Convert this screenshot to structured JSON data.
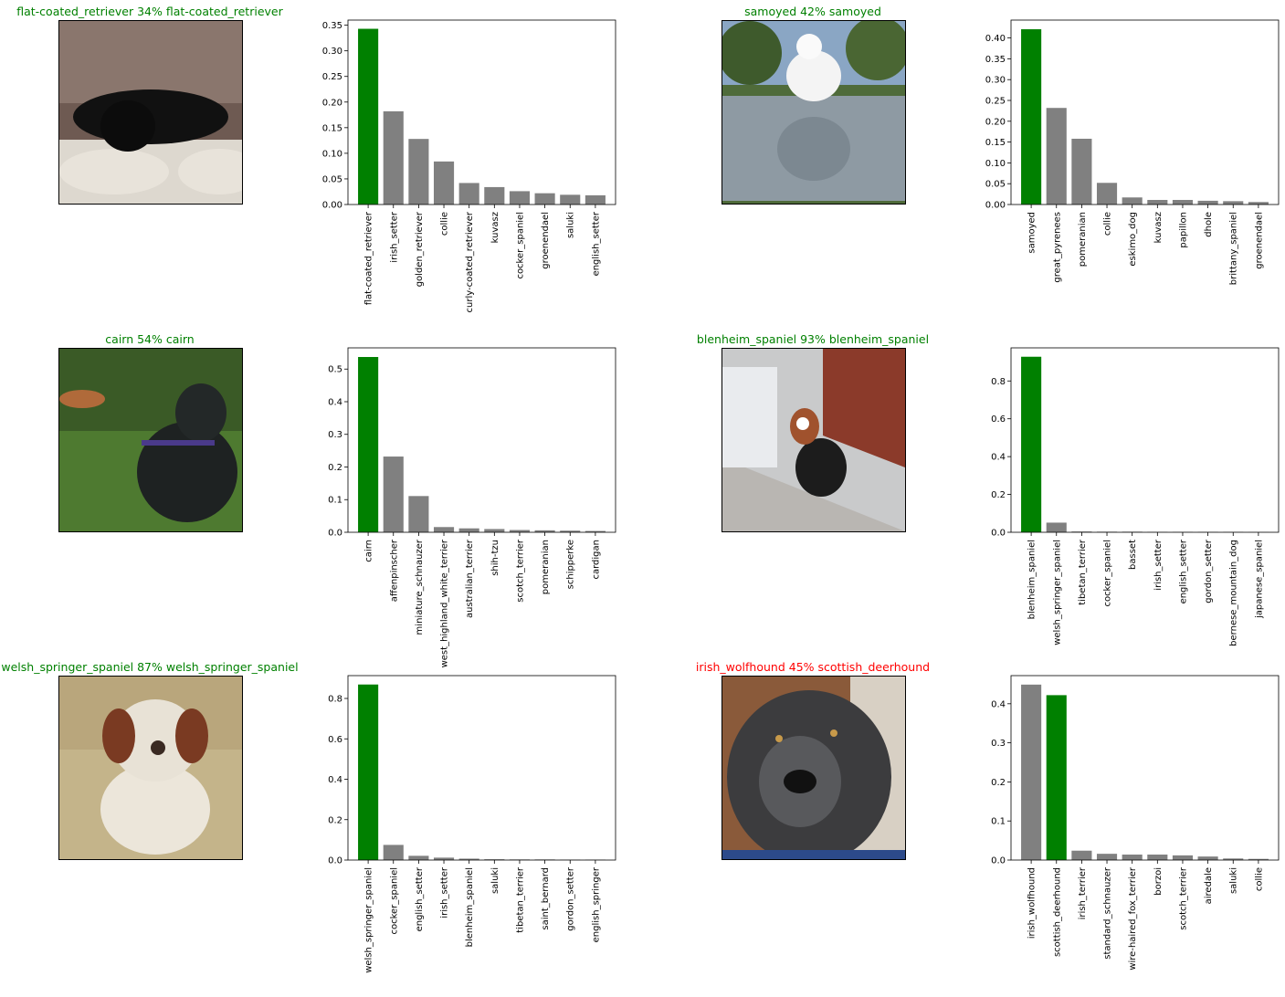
{
  "colors": {
    "correct": "#008000",
    "wrong": "#ff0000",
    "other_bar": "#808080"
  },
  "panels": [
    {
      "title": "flat-coated_retriever 34% flat-coated_retriever",
      "title_color": "#008000",
      "photo_icon": "black-dog-on-couch",
      "chart_data": {
        "type": "bar",
        "categories": [
          "flat-coated_retriever",
          "irish_setter",
          "golden_retriever",
          "collie",
          "curly-coated_retriever",
          "kuvasz",
          "cocker_spaniel",
          "groenendael",
          "saluki",
          "english_setter"
        ],
        "values": [
          0.343,
          0.182,
          0.128,
          0.084,
          0.042,
          0.034,
          0.026,
          0.022,
          0.019,
          0.018
        ],
        "highlight_index": 0,
        "yticks": [
          "0.00",
          "0.05",
          "0.10",
          "0.15",
          "0.20",
          "0.25",
          "0.30",
          "0.35"
        ],
        "ylim": [
          0,
          0.36
        ]
      }
    },
    {
      "title": "samoyed 42% samoyed",
      "title_color": "#008000",
      "photo_icon": "white-dog-on-stone-wall",
      "chart_data": {
        "type": "bar",
        "categories": [
          "samoyed",
          "great_pyrenees",
          "pomeranian",
          "collie",
          "eskimo_dog",
          "kuvasz",
          "papillon",
          "dhole",
          "brittany_spaniel",
          "groenendael"
        ],
        "values": [
          0.421,
          0.232,
          0.158,
          0.052,
          0.017,
          0.011,
          0.011,
          0.009,
          0.008,
          0.006
        ],
        "highlight_index": 0,
        "yticks": [
          "0.00",
          "0.05",
          "0.10",
          "0.15",
          "0.20",
          "0.25",
          "0.30",
          "0.35",
          "0.40"
        ],
        "ylim": [
          0,
          0.443
        ]
      }
    },
    {
      "title": "cairn 54% cairn",
      "title_color": "#008000",
      "photo_icon": "black-terrier-on-grass",
      "chart_data": {
        "type": "bar",
        "categories": [
          "cairn",
          "affenpinscher",
          "miniature_schnauzer",
          "west_highland_white_terrier",
          "australian_terrier",
          "shih-tzu",
          "scotch_terrier",
          "pomeranian",
          "schipperke",
          "cardigan"
        ],
        "values": [
          0.537,
          0.232,
          0.111,
          0.016,
          0.012,
          0.01,
          0.007,
          0.006,
          0.005,
          0.004
        ],
        "highlight_index": 0,
        "yticks": [
          "0.0",
          "0.1",
          "0.2",
          "0.3",
          "0.4",
          "0.5"
        ],
        "ylim": [
          0,
          0.565
        ]
      }
    },
    {
      "title": "blenheim_spaniel 93% blenheim_spaniel",
      "title_color": "#008000",
      "photo_icon": "spaniel-in-jacket-on-sidewalk",
      "chart_data": {
        "type": "bar",
        "categories": [
          "blenheim_spaniel",
          "welsh_springer_spaniel",
          "tibetan_terrier",
          "cocker_spaniel",
          "basset",
          "irish_setter",
          "english_setter",
          "gordon_setter",
          "bernese_mountain_dog",
          "japanese_spaniel"
        ],
        "values": [
          0.928,
          0.051,
          0.004,
          0.003,
          0.003,
          0.002,
          0.002,
          0.002,
          0.002,
          0.001
        ],
        "highlight_index": 0,
        "yticks": [
          "0.0",
          "0.2",
          "0.4",
          "0.6",
          "0.8"
        ],
        "ylim": [
          0,
          0.975
        ]
      }
    },
    {
      "title": "welsh_springer_spaniel 87% welsh_springer_spaniel",
      "title_color": "#008000",
      "photo_icon": "wet-spaniel-on-sand",
      "chart_data": {
        "type": "bar",
        "categories": [
          "welsh_springer_spaniel",
          "cocker_spaniel",
          "english_setter",
          "irish_setter",
          "blenheim_spaniel",
          "saluki",
          "tibetan_terrier",
          "saint_bernard",
          "gordon_setter",
          "english_springer"
        ],
        "values": [
          0.869,
          0.075,
          0.021,
          0.012,
          0.007,
          0.004,
          0.003,
          0.003,
          0.002,
          0.002
        ],
        "highlight_index": 0,
        "yticks": [
          "0.0",
          "0.2",
          "0.4",
          "0.6",
          "0.8"
        ],
        "ylim": [
          0,
          0.913
        ]
      }
    },
    {
      "title": "irish_wolfhound 45% scottish_deerhound",
      "title_color": "#ff0000",
      "photo_icon": "shaggy-grey-dog-closeup",
      "chart_data": {
        "type": "bar",
        "categories": [
          "irish_wolfhound",
          "scottish_deerhound",
          "irish_terrier",
          "standard_schnauzer",
          "wire-haired_fox_terrier",
          "borzoi",
          "scotch_terrier",
          "airedale",
          "saluki",
          "collie"
        ],
        "values": [
          0.449,
          0.422,
          0.024,
          0.016,
          0.014,
          0.014,
          0.012,
          0.009,
          0.004,
          0.003
        ],
        "highlight_index": 1,
        "yticks": [
          "0.0",
          "0.1",
          "0.2",
          "0.3",
          "0.4"
        ],
        "ylim": [
          0,
          0.472
        ]
      }
    }
  ]
}
